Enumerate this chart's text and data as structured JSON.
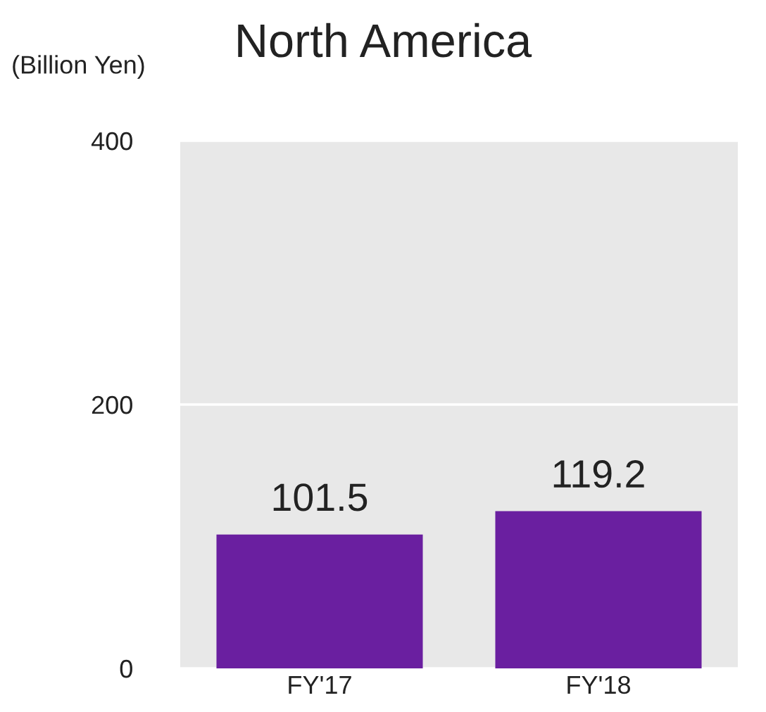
{
  "chart_data": {
    "type": "bar",
    "title": "North America",
    "ylabel": "(Billion Yen)",
    "categories": [
      "FY'17",
      "FY'18"
    ],
    "series": [
      {
        "color": "#6a1fa0",
        "values": [
          101.5,
          119.2
        ]
      }
    ],
    "ylim": [
      0,
      400
    ],
    "yticks": [
      0,
      200,
      400
    ],
    "grid": "y",
    "data_labels": true
  }
}
